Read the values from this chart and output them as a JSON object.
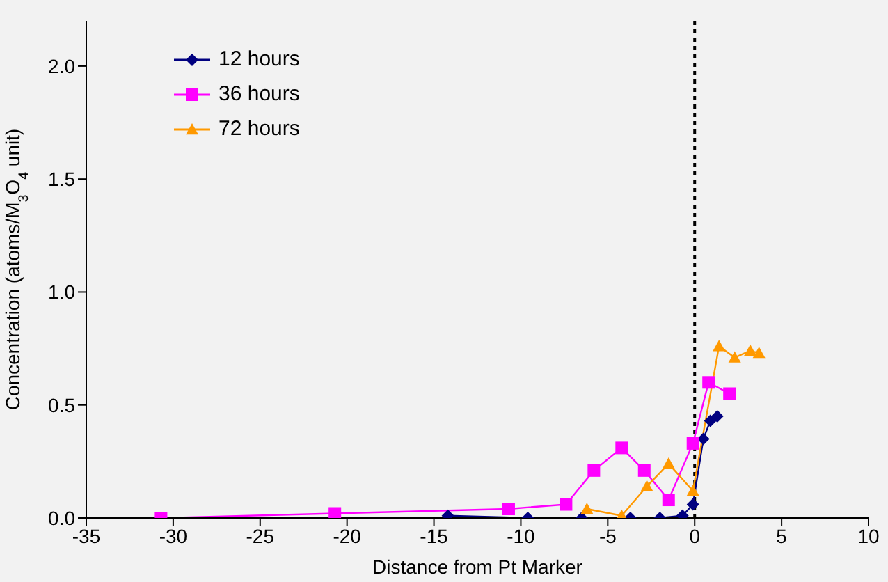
{
  "chart_data": {
    "type": "line",
    "xlabel": "Distance from Pt Marker",
    "ylabel": "Concentration (atoms/M$_{3}$O$_{4}$ unit)",
    "xlim": [
      -35,
      10
    ],
    "xticks": [
      -35,
      -30,
      -25,
      -20,
      -15,
      -10,
      -5,
      0,
      5,
      10
    ],
    "ylim": [
      0,
      2.2
    ],
    "yticks": [
      {
        "value": 0,
        "label": "0.0"
      },
      {
        "value": 0.5,
        "label": "0.5"
      },
      {
        "value": 1,
        "label": "1.0"
      },
      {
        "value": 1.5,
        "label": "1.5"
      },
      {
        "value": 2,
        "label": "2.0"
      }
    ],
    "grid": false,
    "legend": "top left",
    "line_style": "solid",
    "ref_lines": [
      {
        "axis": "x",
        "value": 0,
        "color": "#000000",
        "line_style": "dotted"
      }
    ],
    "series": [
      {
        "name": "12 hours",
        "color": "#000080",
        "marker": "diamond",
        "x": [
          -14.2,
          -9.6,
          -6.5,
          -3.7,
          -2.0,
          -0.7,
          -0.1,
          0.5,
          0.9,
          1.3
        ],
        "values": [
          0.01,
          0,
          0,
          0,
          0,
          0.01,
          0.06,
          0.35,
          0.43,
          0.45
        ]
      },
      {
        "name": "36 hours",
        "color": "#ff00ff",
        "marker": "square",
        "x": [
          -30.7,
          -20.7,
          -10.7,
          -7.4,
          -5.8,
          -4.2,
          -2.9,
          -1.5,
          -0.1,
          0.8,
          2.0
        ],
        "values": [
          0,
          0.02,
          0.04,
          0.06,
          0.21,
          0.31,
          0.21,
          0.08,
          0.33,
          0.6,
          0.55
        ]
      },
      {
        "name": "72 hours",
        "color": "#ff9900",
        "marker": "triangle",
        "x": [
          -6.2,
          -4.2,
          -2.75,
          -1.5,
          -0.1,
          1.4,
          2.3,
          3.2,
          3.7
        ],
        "values": [
          0.04,
          0.01,
          0.14,
          0.24,
          0.12,
          0.76,
          0.71,
          0.74,
          0.73
        ]
      }
    ]
  }
}
